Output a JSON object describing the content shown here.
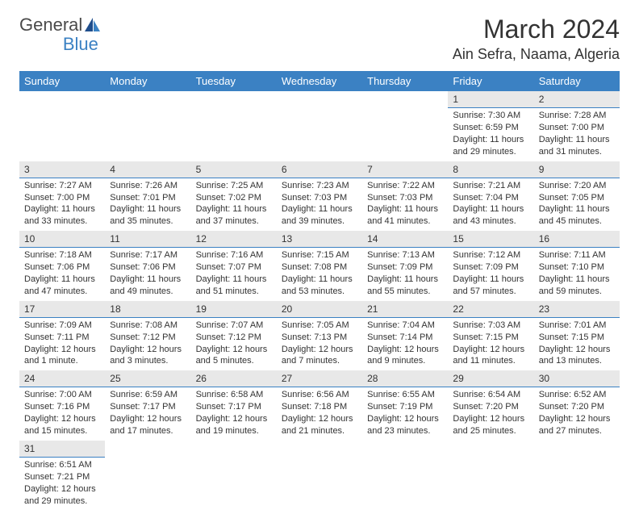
{
  "logo": {
    "text1": "General",
    "text2": "Blue"
  },
  "header": {
    "month_title": "March 2024",
    "location": "Ain Sefra, Naama, Algeria"
  },
  "colors": {
    "header_bg": "#3b81c3",
    "header_fg": "#ffffff",
    "daynum_bg": "#e8e8e8",
    "daynum_border": "#3b81c3",
    "text": "#333333",
    "page_bg": "#ffffff"
  },
  "day_names": [
    "Sunday",
    "Monday",
    "Tuesday",
    "Wednesday",
    "Thursday",
    "Friday",
    "Saturday"
  ],
  "weeks": [
    [
      null,
      null,
      null,
      null,
      null,
      {
        "n": "1",
        "sunrise": "Sunrise: 7:30 AM",
        "sunset": "Sunset: 6:59 PM",
        "daylight": "Daylight: 11 hours and 29 minutes."
      },
      {
        "n": "2",
        "sunrise": "Sunrise: 7:28 AM",
        "sunset": "Sunset: 7:00 PM",
        "daylight": "Daylight: 11 hours and 31 minutes."
      }
    ],
    [
      {
        "n": "3",
        "sunrise": "Sunrise: 7:27 AM",
        "sunset": "Sunset: 7:00 PM",
        "daylight": "Daylight: 11 hours and 33 minutes."
      },
      {
        "n": "4",
        "sunrise": "Sunrise: 7:26 AM",
        "sunset": "Sunset: 7:01 PM",
        "daylight": "Daylight: 11 hours and 35 minutes."
      },
      {
        "n": "5",
        "sunrise": "Sunrise: 7:25 AM",
        "sunset": "Sunset: 7:02 PM",
        "daylight": "Daylight: 11 hours and 37 minutes."
      },
      {
        "n": "6",
        "sunrise": "Sunrise: 7:23 AM",
        "sunset": "Sunset: 7:03 PM",
        "daylight": "Daylight: 11 hours and 39 minutes."
      },
      {
        "n": "7",
        "sunrise": "Sunrise: 7:22 AM",
        "sunset": "Sunset: 7:03 PM",
        "daylight": "Daylight: 11 hours and 41 minutes."
      },
      {
        "n": "8",
        "sunrise": "Sunrise: 7:21 AM",
        "sunset": "Sunset: 7:04 PM",
        "daylight": "Daylight: 11 hours and 43 minutes."
      },
      {
        "n": "9",
        "sunrise": "Sunrise: 7:20 AM",
        "sunset": "Sunset: 7:05 PM",
        "daylight": "Daylight: 11 hours and 45 minutes."
      }
    ],
    [
      {
        "n": "10",
        "sunrise": "Sunrise: 7:18 AM",
        "sunset": "Sunset: 7:06 PM",
        "daylight": "Daylight: 11 hours and 47 minutes."
      },
      {
        "n": "11",
        "sunrise": "Sunrise: 7:17 AM",
        "sunset": "Sunset: 7:06 PM",
        "daylight": "Daylight: 11 hours and 49 minutes."
      },
      {
        "n": "12",
        "sunrise": "Sunrise: 7:16 AM",
        "sunset": "Sunset: 7:07 PM",
        "daylight": "Daylight: 11 hours and 51 minutes."
      },
      {
        "n": "13",
        "sunrise": "Sunrise: 7:15 AM",
        "sunset": "Sunset: 7:08 PM",
        "daylight": "Daylight: 11 hours and 53 minutes."
      },
      {
        "n": "14",
        "sunrise": "Sunrise: 7:13 AM",
        "sunset": "Sunset: 7:09 PM",
        "daylight": "Daylight: 11 hours and 55 minutes."
      },
      {
        "n": "15",
        "sunrise": "Sunrise: 7:12 AM",
        "sunset": "Sunset: 7:09 PM",
        "daylight": "Daylight: 11 hours and 57 minutes."
      },
      {
        "n": "16",
        "sunrise": "Sunrise: 7:11 AM",
        "sunset": "Sunset: 7:10 PM",
        "daylight": "Daylight: 11 hours and 59 minutes."
      }
    ],
    [
      {
        "n": "17",
        "sunrise": "Sunrise: 7:09 AM",
        "sunset": "Sunset: 7:11 PM",
        "daylight": "Daylight: 12 hours and 1 minute."
      },
      {
        "n": "18",
        "sunrise": "Sunrise: 7:08 AM",
        "sunset": "Sunset: 7:12 PM",
        "daylight": "Daylight: 12 hours and 3 minutes."
      },
      {
        "n": "19",
        "sunrise": "Sunrise: 7:07 AM",
        "sunset": "Sunset: 7:12 PM",
        "daylight": "Daylight: 12 hours and 5 minutes."
      },
      {
        "n": "20",
        "sunrise": "Sunrise: 7:05 AM",
        "sunset": "Sunset: 7:13 PM",
        "daylight": "Daylight: 12 hours and 7 minutes."
      },
      {
        "n": "21",
        "sunrise": "Sunrise: 7:04 AM",
        "sunset": "Sunset: 7:14 PM",
        "daylight": "Daylight: 12 hours and 9 minutes."
      },
      {
        "n": "22",
        "sunrise": "Sunrise: 7:03 AM",
        "sunset": "Sunset: 7:15 PM",
        "daylight": "Daylight: 12 hours and 11 minutes."
      },
      {
        "n": "23",
        "sunrise": "Sunrise: 7:01 AM",
        "sunset": "Sunset: 7:15 PM",
        "daylight": "Daylight: 12 hours and 13 minutes."
      }
    ],
    [
      {
        "n": "24",
        "sunrise": "Sunrise: 7:00 AM",
        "sunset": "Sunset: 7:16 PM",
        "daylight": "Daylight: 12 hours and 15 minutes."
      },
      {
        "n": "25",
        "sunrise": "Sunrise: 6:59 AM",
        "sunset": "Sunset: 7:17 PM",
        "daylight": "Daylight: 12 hours and 17 minutes."
      },
      {
        "n": "26",
        "sunrise": "Sunrise: 6:58 AM",
        "sunset": "Sunset: 7:17 PM",
        "daylight": "Daylight: 12 hours and 19 minutes."
      },
      {
        "n": "27",
        "sunrise": "Sunrise: 6:56 AM",
        "sunset": "Sunset: 7:18 PM",
        "daylight": "Daylight: 12 hours and 21 minutes."
      },
      {
        "n": "28",
        "sunrise": "Sunrise: 6:55 AM",
        "sunset": "Sunset: 7:19 PM",
        "daylight": "Daylight: 12 hours and 23 minutes."
      },
      {
        "n": "29",
        "sunrise": "Sunrise: 6:54 AM",
        "sunset": "Sunset: 7:20 PM",
        "daylight": "Daylight: 12 hours and 25 minutes."
      },
      {
        "n": "30",
        "sunrise": "Sunrise: 6:52 AM",
        "sunset": "Sunset: 7:20 PM",
        "daylight": "Daylight: 12 hours and 27 minutes."
      }
    ],
    [
      {
        "n": "31",
        "sunrise": "Sunrise: 6:51 AM",
        "sunset": "Sunset: 7:21 PM",
        "daylight": "Daylight: 12 hours and 29 minutes."
      },
      null,
      null,
      null,
      null,
      null,
      null
    ]
  ]
}
